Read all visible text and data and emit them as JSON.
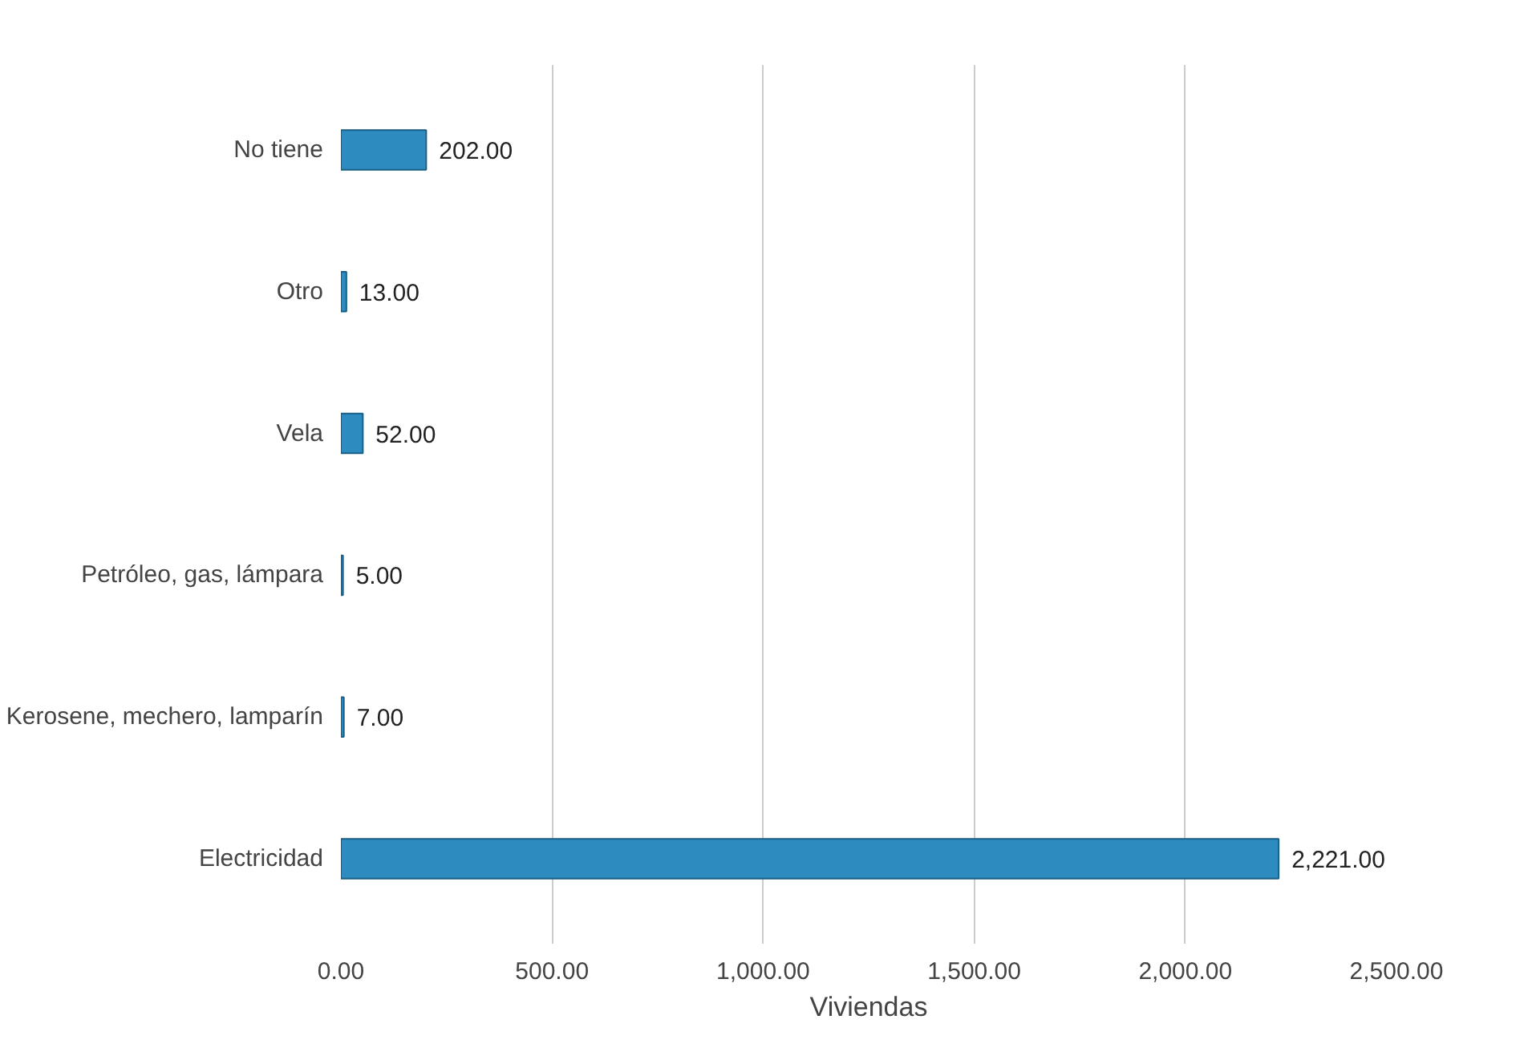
{
  "chart_data": {
    "type": "bar",
    "orientation": "horizontal",
    "xlabel": "Viviendas",
    "categories": [
      "No tiene",
      "Otro",
      "Vela",
      "Petróleo, gas, lámpara",
      "Kerosene, mechero, lamparín",
      "Electricidad"
    ],
    "values": [
      202,
      13,
      52,
      5,
      7,
      2221
    ],
    "value_labels": [
      "202.00",
      "13.00",
      "52.00",
      "5.00",
      "7.00",
      "2,221.00"
    ],
    "color": "#2e8bc0",
    "xlim": [
      0,
      2500
    ],
    "xticks": [
      {
        "value": 0,
        "label": "0.00"
      },
      {
        "value": 500,
        "label": "500.00"
      },
      {
        "value": 1000,
        "label": "1,000.00"
      },
      {
        "value": 1500,
        "label": "1,500.00"
      },
      {
        "value": 2000,
        "label": "2,000.00"
      },
      {
        "value": 2500,
        "label": "2,500.00"
      }
    ],
    "grid": "x"
  }
}
